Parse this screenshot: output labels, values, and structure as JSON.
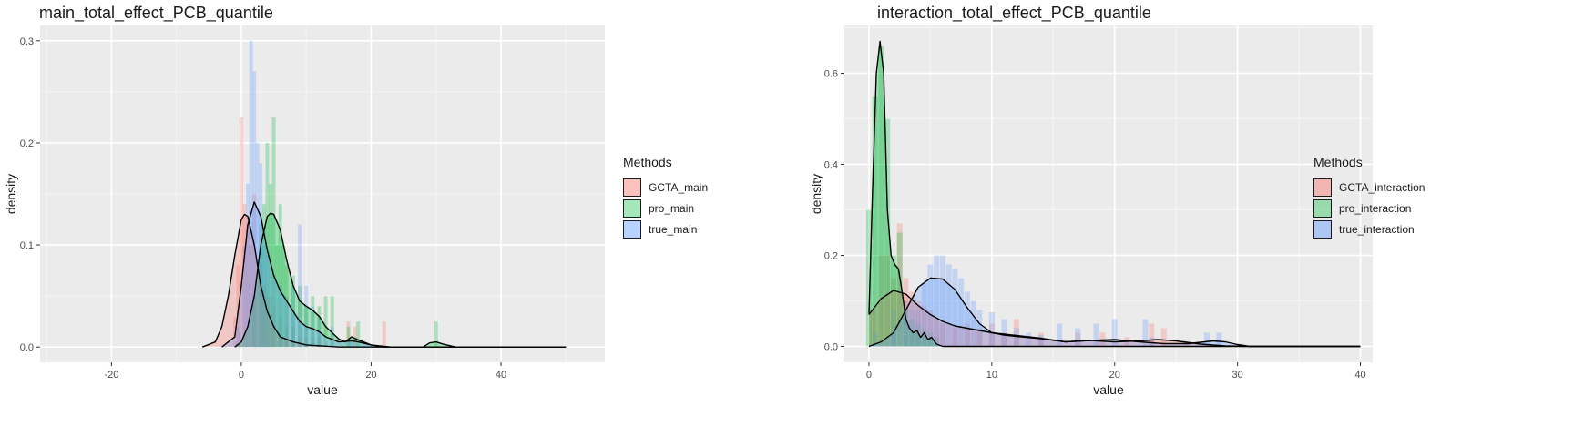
{
  "chart_data": [
    {
      "type": "histogram-density",
      "title": "main_total_effect_PCB_quantile",
      "xlabel": "value",
      "ylabel": "density",
      "xlim": [
        -31,
        56
      ],
      "ylim": [
        -0.015,
        0.315
      ],
      "x_ticks": [
        -20,
        0,
        20,
        40
      ],
      "y_ticks": [
        0.0,
        0.1,
        0.2,
        0.3
      ],
      "y_tick_labels": [
        "0.0",
        "0.1",
        "0.2",
        "0.3"
      ],
      "density_range": [
        -30,
        50
      ],
      "grid": true,
      "legend": {
        "title": "Methods",
        "placement": "right"
      },
      "series": [
        {
          "name": "GCTA_main",
          "fill": "#F8766D",
          "hist_width": 0.55,
          "hist": [
            [
              -1,
              0.03
            ],
            [
              -0.5,
              0.08
            ],
            [
              0,
              0.225
            ],
            [
              0.5,
              0.14
            ],
            [
              1,
              0.12
            ],
            [
              1.5,
              0.1
            ],
            [
              2,
              0.15
            ],
            [
              2.5,
              0.07
            ],
            [
              3,
              0.08
            ],
            [
              3.5,
              0.06
            ],
            [
              4,
              0.05
            ],
            [
              4.5,
              0.05
            ],
            [
              5,
              0.04
            ],
            [
              6,
              0.03
            ],
            [
              7,
              0.02
            ],
            [
              8,
              0.02
            ],
            [
              9,
              0.01
            ],
            [
              10,
              0.01
            ],
            [
              11,
              0.01
            ],
            [
              12,
              0.01
            ],
            [
              16.5,
              0.025
            ],
            [
              17.5,
              0.02
            ],
            [
              22,
              0.025
            ]
          ],
          "density": [
            [
              -6,
              0
            ],
            [
              -4,
              0.005
            ],
            [
              -3,
              0.02
            ],
            [
              -2,
              0.05
            ],
            [
              -1,
              0.09
            ],
            [
              0,
              0.125
            ],
            [
              0.5,
              0.13
            ],
            [
              1,
              0.128
            ],
            [
              2,
              0.1
            ],
            [
              3,
              0.06
            ],
            [
              4,
              0.035
            ],
            [
              5,
              0.02
            ],
            [
              6,
              0.01
            ],
            [
              8,
              0.005
            ],
            [
              10,
              0.002
            ],
            [
              15,
              0
            ],
            [
              50,
              0
            ]
          ]
        },
        {
          "name": "pro_main",
          "fill": "#00BA38",
          "hist_width": 0.55,
          "hist": [
            [
              2,
              0.05
            ],
            [
              3,
              0.12
            ],
            [
              3.5,
              0.14
            ],
            [
              4,
              0.2
            ],
            [
              4.5,
              0.16
            ],
            [
              5,
              0.225
            ],
            [
              5.5,
              0.1
            ],
            [
              6,
              0.14
            ],
            [
              6.5,
              0.1
            ],
            [
              7,
              0.08
            ],
            [
              8,
              0.07
            ],
            [
              9,
              0.06
            ],
            [
              10,
              0.04
            ],
            [
              11,
              0.05
            ],
            [
              12,
              0.04
            ],
            [
              13,
              0.05
            ],
            [
              14,
              0.05
            ],
            [
              16.5,
              0.02
            ],
            [
              18,
              0.025
            ],
            [
              30,
              0.025
            ]
          ],
          "density": [
            [
              -1,
              0
            ],
            [
              0,
              0.005
            ],
            [
              1,
              0.02
            ],
            [
              2,
              0.05
            ],
            [
              3,
              0.1
            ],
            [
              4,
              0.128
            ],
            [
              4.5,
              0.131
            ],
            [
              5,
              0.13
            ],
            [
              6,
              0.115
            ],
            [
              7,
              0.085
            ],
            [
              8,
              0.06
            ],
            [
              9,
              0.045
            ],
            [
              10,
              0.04
            ],
            [
              11,
              0.036
            ],
            [
              12,
              0.03
            ],
            [
              13,
              0.02
            ],
            [
              15,
              0.008
            ],
            [
              16,
              0.005
            ],
            [
              17,
              0.01
            ],
            [
              18,
              0.007
            ],
            [
              20,
              0.002
            ],
            [
              23,
              0
            ],
            [
              28,
              0
            ],
            [
              29,
              0.004
            ],
            [
              30,
              0.005
            ],
            [
              31,
              0.003
            ],
            [
              33,
              0
            ],
            [
              50,
              0
            ]
          ]
        },
        {
          "name": "true_main",
          "fill": "#619CFF",
          "hist_width": 0.55,
          "hist": [
            [
              -0.5,
              0.02
            ],
            [
              0.5,
              0.1
            ],
            [
              1,
              0.16
            ],
            [
              1.5,
              0.3
            ],
            [
              2,
              0.27
            ],
            [
              2.5,
              0.2
            ],
            [
              3,
              0.18
            ],
            [
              3.5,
              0.1
            ],
            [
              4,
              0.09
            ],
            [
              5,
              0.07
            ],
            [
              6,
              0.06
            ],
            [
              7,
              0.05
            ],
            [
              8,
              0.06
            ],
            [
              9,
              0.12
            ],
            [
              10,
              0.06
            ],
            [
              11,
              0.04
            ],
            [
              12,
              0.03
            ],
            [
              14,
              0.02
            ],
            [
              17,
              0.01
            ]
          ],
          "density": [
            [
              -3,
              0
            ],
            [
              -1,
              0.01
            ],
            [
              0,
              0.06
            ],
            [
              1,
              0.12
            ],
            [
              2,
              0.142
            ],
            [
              3,
              0.128
            ],
            [
              4,
              0.095
            ],
            [
              5,
              0.07
            ],
            [
              6,
              0.055
            ],
            [
              7,
              0.045
            ],
            [
              8,
              0.035
            ],
            [
              9,
              0.025
            ],
            [
              10,
              0.02
            ],
            [
              11,
              0.018
            ],
            [
              12,
              0.015
            ],
            [
              13,
              0.01
            ],
            [
              15,
              0.005
            ],
            [
              17,
              0.006
            ],
            [
              18,
              0.005
            ],
            [
              20,
              0.002
            ],
            [
              22,
              0
            ],
            [
              50,
              0
            ]
          ]
        }
      ]
    },
    {
      "type": "histogram-density",
      "title": "interaction_total_effect_PCB_quantile",
      "xlabel": "value",
      "ylabel": "density",
      "xlim": [
        -2,
        41
      ],
      "ylim": [
        -0.035,
        0.705
      ],
      "x_ticks": [
        0,
        10,
        20,
        30,
        40
      ],
      "y_ticks": [
        0.0,
        0.2,
        0.4,
        0.6
      ],
      "y_tick_labels": [
        "0.0",
        "0.2",
        "0.4",
        "0.6"
      ],
      "density_range": [
        0,
        40
      ],
      "grid": true,
      "legend": {
        "title": "Methods",
        "placement": "right"
      },
      "series": [
        {
          "name": "GCTA_interaction",
          "fill": "#F8766D",
          "hist_width": 0.45,
          "hist": [
            [
              0.3,
              0.08
            ],
            [
              1,
              0.2
            ],
            [
              1.5,
              0.2
            ],
            [
              2,
              0.15
            ],
            [
              2.5,
              0.27
            ],
            [
              3,
              0.15
            ],
            [
              3.5,
              0.12
            ],
            [
              4,
              0.1
            ],
            [
              4.5,
              0.09
            ],
            [
              5,
              0.08
            ],
            [
              5.5,
              0.06
            ],
            [
              6,
              0.05
            ],
            [
              7,
              0.04
            ],
            [
              8,
              0.05
            ],
            [
              9,
              0.04
            ],
            [
              10,
              0.05
            ],
            [
              11,
              0.03
            ],
            [
              12,
              0.06
            ],
            [
              14,
              0.03
            ],
            [
              17,
              0.03
            ],
            [
              19,
              0.03
            ],
            [
              21,
              0.02
            ],
            [
              23,
              0.05
            ],
            [
              24,
              0.04
            ]
          ],
          "density": [
            [
              0,
              0.07
            ],
            [
              1,
              0.105
            ],
            [
              2,
              0.123
            ],
            [
              3,
              0.115
            ],
            [
              4,
              0.09
            ],
            [
              5,
              0.07
            ],
            [
              6,
              0.055
            ],
            [
              7,
              0.045
            ],
            [
              8,
              0.04
            ],
            [
              9,
              0.035
            ],
            [
              10,
              0.03
            ],
            [
              11,
              0.027
            ],
            [
              12,
              0.024
            ],
            [
              14,
              0.018
            ],
            [
              16,
              0.01
            ],
            [
              18,
              0.013
            ],
            [
              20,
              0.01
            ],
            [
              22,
              0.012
            ],
            [
              23.5,
              0.015
            ],
            [
              25,
              0.012
            ],
            [
              27,
              0.005
            ],
            [
              29,
              0.001
            ],
            [
              31,
              0
            ],
            [
              40,
              0
            ]
          ]
        },
        {
          "name": "pro_interaction",
          "fill": "#00BA38",
          "hist_width": 0.45,
          "hist": [
            [
              0,
              0.3
            ],
            [
              0.5,
              0.55
            ],
            [
              1,
              0.66
            ],
            [
              1.5,
              0.5
            ],
            [
              2,
              0.2
            ],
            [
              2.5,
              0.25
            ],
            [
              3,
              0.08
            ],
            [
              3.5,
              0.06
            ],
            [
              4,
              0.05
            ],
            [
              4.5,
              0.04
            ],
            [
              5,
              0.03
            ],
            [
              5.5,
              0.02
            ]
          ],
          "density": [
            [
              0,
              0.07
            ],
            [
              0.3,
              0.35
            ],
            [
              0.6,
              0.6
            ],
            [
              0.9,
              0.67
            ],
            [
              1.2,
              0.6
            ],
            [
              1.5,
              0.3
            ],
            [
              1.8,
              0.2
            ],
            [
              2.1,
              0.18
            ],
            [
              2.4,
              0.17
            ],
            [
              2.7,
              0.12
            ],
            [
              3,
              0.06
            ],
            [
              3.3,
              0.04
            ],
            [
              3.6,
              0.03
            ],
            [
              3.9,
              0.035
            ],
            [
              4.2,
              0.02
            ],
            [
              4.5,
              0.03
            ],
            [
              4.8,
              0.015
            ],
            [
              5.1,
              0.02
            ],
            [
              5.5,
              0.005
            ],
            [
              6,
              0
            ],
            [
              40,
              0
            ]
          ]
        },
        {
          "name": "true_interaction",
          "fill": "#619CFF",
          "hist_width": 0.45,
          "hist": [
            [
              0.5,
              0.03
            ],
            [
              2,
              0.08
            ],
            [
              3,
              0.1
            ],
            [
              3.5,
              0.08
            ],
            [
              4,
              0.08
            ],
            [
              4.5,
              0.14
            ],
            [
              5,
              0.18
            ],
            [
              5.5,
              0.2
            ],
            [
              6,
              0.2
            ],
            [
              6.5,
              0.18
            ],
            [
              7,
              0.17
            ],
            [
              7.5,
              0.15
            ],
            [
              8,
              0.12
            ],
            [
              8.5,
              0.1
            ],
            [
              9,
              0.08
            ],
            [
              10,
              0.075
            ],
            [
              11,
              0.06
            ],
            [
              12,
              0.04
            ],
            [
              13,
              0.03
            ],
            [
              14,
              0.025
            ],
            [
              15.5,
              0.05
            ],
            [
              17,
              0.04
            ],
            [
              18.5,
              0.05
            ],
            [
              20,
              0.06
            ],
            [
              22.5,
              0.06
            ],
            [
              23,
              0.02
            ],
            [
              27.5,
              0.03
            ],
            [
              28.5,
              0.03
            ]
          ],
          "density": [
            [
              0,
              0
            ],
            [
              1,
              0.01
            ],
            [
              2,
              0.03
            ],
            [
              3,
              0.08
            ],
            [
              4,
              0.13
            ],
            [
              5,
              0.15
            ],
            [
              6,
              0.148
            ],
            [
              7,
              0.125
            ],
            [
              8,
              0.085
            ],
            [
              9,
              0.05
            ],
            [
              10,
              0.03
            ],
            [
              11,
              0.025
            ],
            [
              12,
              0.022
            ],
            [
              14,
              0.017
            ],
            [
              16,
              0.01
            ],
            [
              18,
              0.013
            ],
            [
              20,
              0.015
            ],
            [
              22,
              0.01
            ],
            [
              24,
              0.006
            ],
            [
              26,
              0.006
            ],
            [
              28,
              0.012
            ],
            [
              29,
              0.01
            ],
            [
              30,
              0.004
            ],
            [
              31,
              0
            ],
            [
              40,
              0
            ]
          ]
        }
      ]
    }
  ]
}
